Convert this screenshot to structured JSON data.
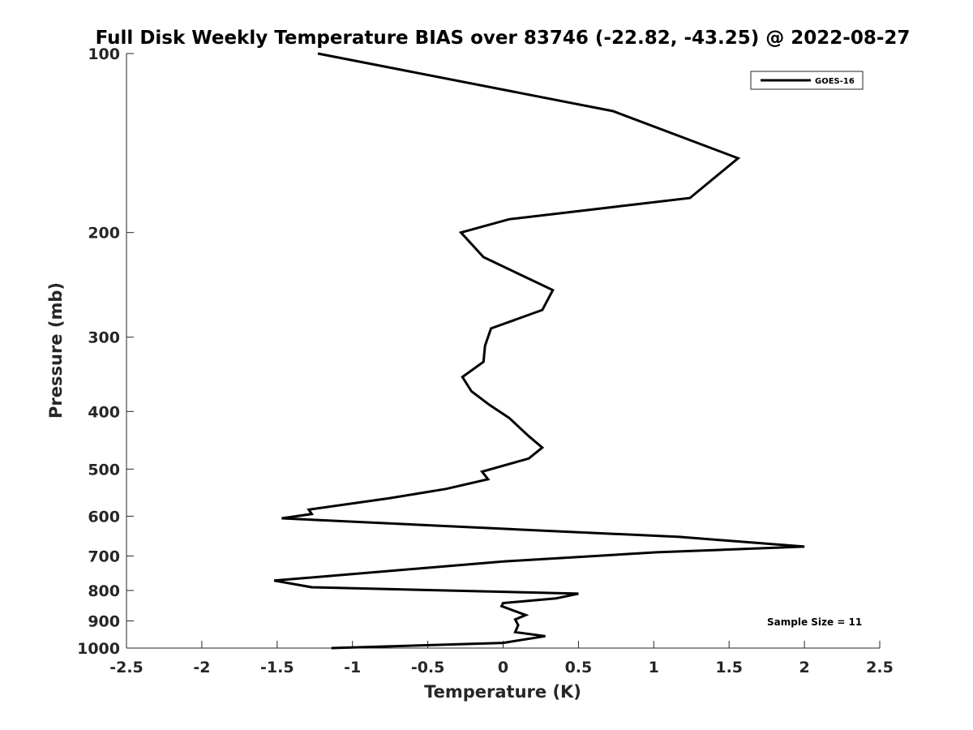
{
  "chart_data": {
    "type": "line",
    "title": "Full Disk Weekly Temperature BIAS over 83746 (-22.82, -43.25) @ 2022-08-27",
    "xlabel": "Temperature (K)",
    "ylabel": "Pressure (mb)",
    "xlim": [
      -2.5,
      2.5
    ],
    "ylim": [
      100,
      1000
    ],
    "y_scale": "log",
    "y_reversed": true,
    "x_ticks": [
      -2.5,
      -2,
      -1.5,
      -1,
      -0.5,
      0,
      0.5,
      1,
      1.5,
      2,
      2.5
    ],
    "x_tick_labels": [
      "-2.5",
      "-2",
      "-1.5",
      "-1",
      "-0.5",
      "0",
      "0.5",
      "1",
      "1.5",
      "2",
      "2.5"
    ],
    "y_ticks": [
      100,
      200,
      300,
      400,
      500,
      600,
      700,
      800,
      900,
      1000
    ],
    "y_tick_labels": [
      "100",
      "200",
      "300",
      "400",
      "500",
      "600",
      "700",
      "800",
      "900",
      "1000"
    ],
    "grid": false,
    "legend_position": "top-right",
    "series": [
      {
        "name": "GOES-16",
        "color": "#000000",
        "points": [
          [
            -1.23,
            100
          ],
          [
            0.73,
            125
          ],
          [
            1.56,
            150
          ],
          [
            1.24,
            175
          ],
          [
            0.04,
            190
          ],
          [
            -0.28,
            200
          ],
          [
            -0.13,
            220
          ],
          [
            0.33,
            250
          ],
          [
            0.26,
            270
          ],
          [
            -0.08,
            290
          ],
          [
            -0.12,
            310
          ],
          [
            -0.13,
            330
          ],
          [
            -0.27,
            350
          ],
          [
            -0.21,
            370
          ],
          [
            -0.09,
            390
          ],
          [
            0.04,
            410
          ],
          [
            0.17,
            440
          ],
          [
            0.26,
            460
          ],
          [
            0.17,
            480
          ],
          [
            -0.14,
            505
          ],
          [
            -0.1,
            520
          ],
          [
            -0.38,
            540
          ],
          [
            -0.76,
            560
          ],
          [
            -1.29,
            585
          ],
          [
            -1.27,
            595
          ],
          [
            -1.47,
            605
          ],
          [
            0,
            630
          ],
          [
            1.17,
            650
          ],
          [
            2.0,
            675
          ],
          [
            1.02,
            690
          ],
          [
            0,
            715
          ],
          [
            -1.52,
            770
          ],
          [
            -1.27,
            790
          ],
          [
            0.5,
            810
          ],
          [
            0.35,
            825
          ],
          [
            0,
            840
          ],
          [
            -0.01,
            850
          ],
          [
            0.15,
            880
          ],
          [
            0.08,
            895
          ],
          [
            0.1,
            915
          ],
          [
            0.08,
            940
          ],
          [
            0.28,
            955
          ],
          [
            0,
            980
          ],
          [
            -1.14,
            1000
          ]
        ]
      }
    ],
    "annotations": [
      {
        "text": "Sample Size = 11",
        "position": "bottom-right"
      }
    ]
  }
}
